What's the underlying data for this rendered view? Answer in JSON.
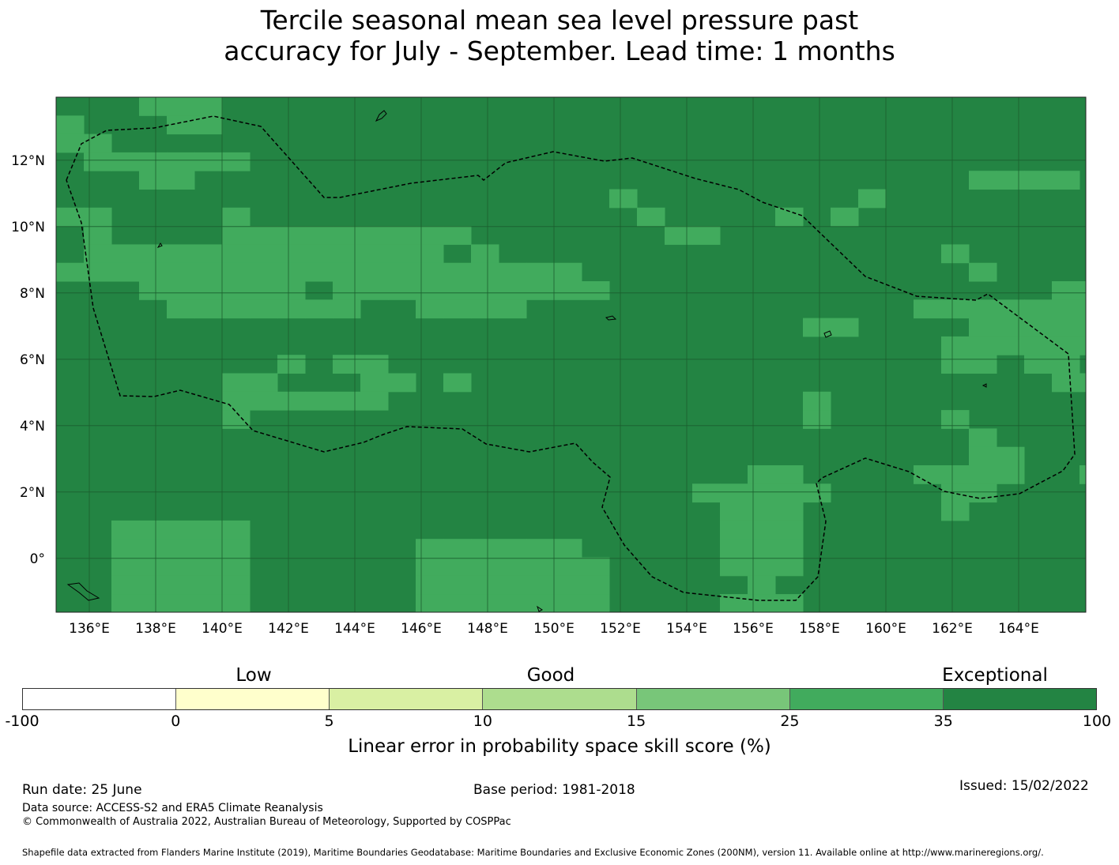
{
  "title": {
    "line1": "Tercile seasonal mean sea level pressure past",
    "line2": "accuracy for July - September. Lead time: 1 months"
  },
  "map": {
    "lon_labels": [
      "136°E",
      "138°E",
      "140°E",
      "142°E",
      "144°E",
      "146°E",
      "148°E",
      "150°E",
      "152°E",
      "154°E",
      "156°E",
      "158°E",
      "160°E",
      "162°E",
      "164°E"
    ],
    "lat_labels": [
      "12°N",
      "10°N",
      "8°N",
      "6°N",
      "4°N",
      "2°N",
      "0°"
    ],
    "colors": {
      "background_class": "#238443",
      "highlight_class": "#41ab5d",
      "boundary": "#000000"
    }
  },
  "colorbar": {
    "categories": [
      "Low",
      "Good",
      "Exceptional"
    ],
    "tick_labels": [
      "-100",
      "0",
      "5",
      "10",
      "15",
      "25",
      "35",
      "100"
    ],
    "colors": [
      "#ffffff",
      "#ffffcc",
      "#d9f0a3",
      "#addd8e",
      "#78c679",
      "#41ab5d",
      "#238443"
    ],
    "label": "Linear error in probability space skill score (%)"
  },
  "footer": {
    "run_date": "Run date: 25 June",
    "base_period": "Base period: 1981-2018",
    "issued": "Issued: 15/02/2022",
    "data_source": "Data source: ACCESS-S2 and ERA5 Climate Reanalysis",
    "copyright": "© Commonwealth of Australia 2022, Australian Bureau of Meteorology, Supported by COSPPac",
    "shapefile": "Shapefile data extracted from Flanders Marine Institute (2019), Maritime Boundaries Geodatabase: Maritime Boundaries and Exclusive Economic Zones (200NM), version 11. Available online at http://www.marineregions.org/."
  }
}
